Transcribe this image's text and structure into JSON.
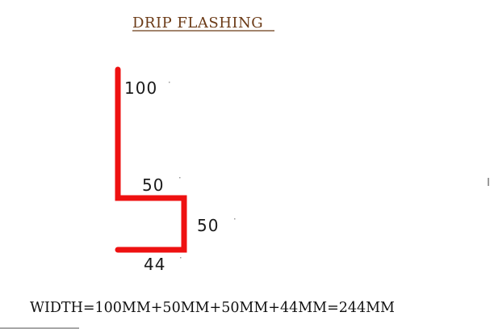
{
  "title": "DRIP FLASHING",
  "dimensions": {
    "top_vertical": "100",
    "top_horizontal": "50",
    "lower_vertical": "50",
    "bottom_horizontal": "44"
  },
  "formula": "WIDTH=100MM+50MM+50MM+44MM=244MM",
  "colors": {
    "flashing_line": "#ee1111",
    "title": "#6b3a16",
    "text": "#111111"
  }
}
